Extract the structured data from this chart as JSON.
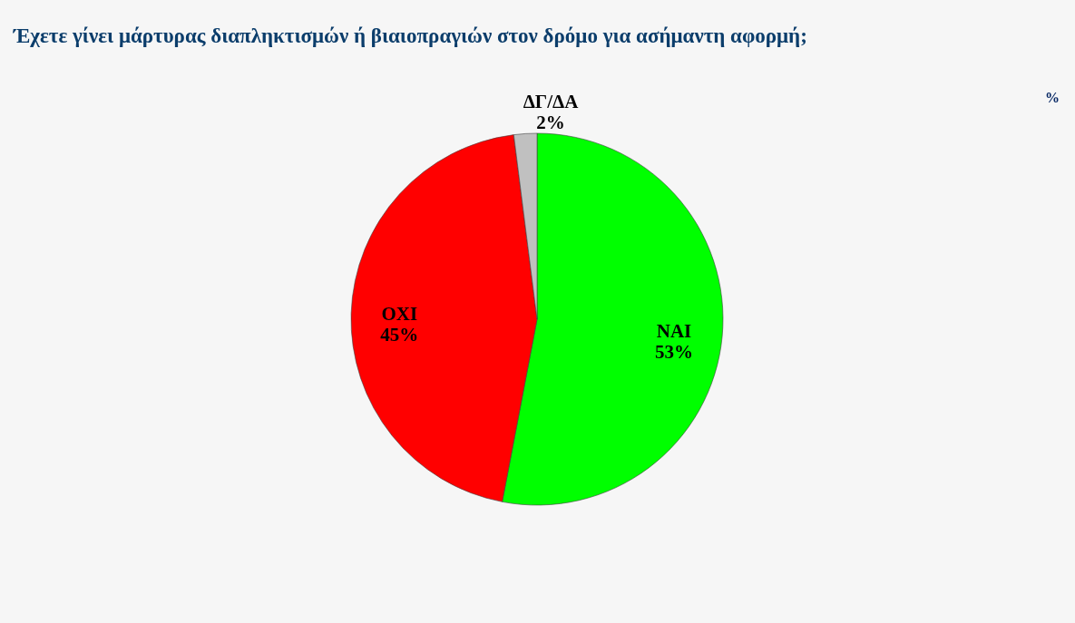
{
  "chart_data": {
    "type": "pie",
    "title": "Έχετε γίνει μάρτυρας διαπληκτισμών ή βιαιοπραγιών στον δρόμο για ασήμαντη αφορμή;",
    "categories": [
      "ΝΑΙ",
      "ΟΧΙ",
      "ΔΓ/ΔΑ"
    ],
    "values": [
      53,
      45,
      2
    ],
    "colors": [
      "#00ff00",
      "#ff0000",
      "#c0c0c0"
    ],
    "value_labels": [
      "53%",
      "45%",
      "2%"
    ],
    "annotations": [
      "%"
    ],
    "legend": false
  }
}
